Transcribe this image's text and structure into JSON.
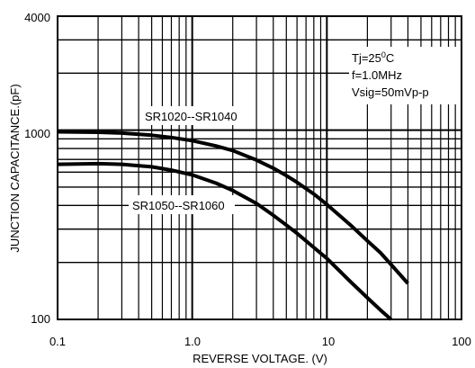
{
  "chart_data": {
    "type": "line",
    "title": "",
    "xlabel": "REVERSE VOLTAGE. (V)",
    "ylabel": "JUNCTION CAPACITANCE.(pF)",
    "x_scale": "log",
    "y_scale": "log",
    "xlim": [
      0.1,
      100
    ],
    "ylim": [
      100,
      4000
    ],
    "grid": true,
    "x_tick_labels": [
      "0.1",
      "1.0",
      "10",
      "100"
    ],
    "x_tick_values": [
      0.1,
      1,
      10,
      100
    ],
    "y_tick_labels": [
      "100",
      "1000",
      "4000"
    ],
    "y_tick_values": [
      100,
      1000,
      4000
    ],
    "annotation_lines": [
      "Tj=25°C",
      "f=1.0MHz",
      "Vsig=50mVp-p"
    ],
    "series": [
      {
        "name": "SR1020--SR1040",
        "x": [
          0.1,
          0.2,
          0.3,
          0.5,
          0.7,
          1,
          1.5,
          2,
          3,
          4,
          5,
          6,
          8,
          10,
          15,
          20,
          25,
          30,
          40
        ],
        "y": [
          980,
          975,
          965,
          940,
          915,
          880,
          825,
          780,
          695,
          630,
          575,
          530,
          460,
          405,
          315,
          260,
          225,
          195,
          155
        ]
      },
      {
        "name": "SR1050--SR1060",
        "x": [
          0.1,
          0.2,
          0.3,
          0.5,
          0.7,
          1,
          1.5,
          2,
          3,
          4,
          5,
          6,
          8,
          10,
          15,
          20,
          25,
          30
        ],
        "y": [
          660,
          665,
          660,
          640,
          615,
          580,
          525,
          480,
          410,
          355,
          315,
          285,
          240,
          210,
          158,
          130,
          112,
          100
        ]
      }
    ]
  }
}
